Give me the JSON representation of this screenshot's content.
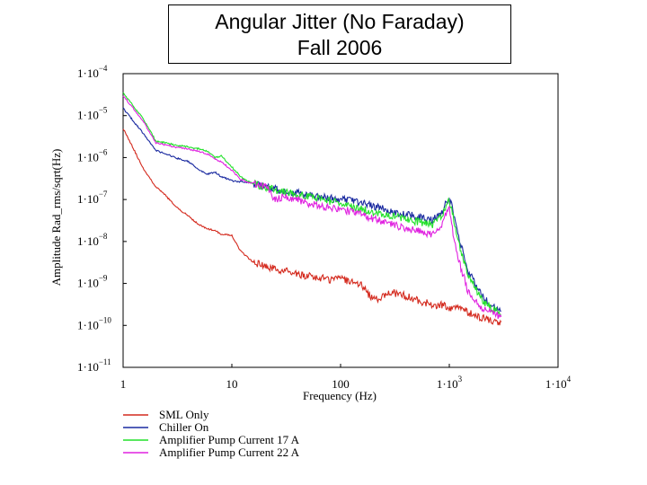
{
  "slide": {
    "title_line1": "Angular Jitter (No Faraday)",
    "title_line2": "Fall 2006"
  },
  "chart_data": {
    "type": "line",
    "xlabel": "Frequency (Hz)",
    "ylabel": "Amplitude Rad_rms/sqrt(Hz)",
    "x_scale": "log",
    "y_scale": "log",
    "xlim": [
      1,
      10000
    ],
    "ylim": [
      1e-11,
      0.0001
    ],
    "x_ticks": [
      {
        "value": 1,
        "mant": "1",
        "exp": ""
      },
      {
        "value": 10,
        "mant": "10",
        "exp": ""
      },
      {
        "value": 100,
        "mant": "100",
        "exp": ""
      },
      {
        "value": 1000,
        "mant": "1·10",
        "exp": "3"
      },
      {
        "value": 10000,
        "mant": "1·10",
        "exp": "4"
      }
    ],
    "y_ticks": [
      {
        "value": 0.0001,
        "mant": "1·10",
        "exp": "−4"
      },
      {
        "value": 1e-05,
        "mant": "1·10",
        "exp": "−5"
      },
      {
        "value": 1e-06,
        "mant": "1·10",
        "exp": "−6"
      },
      {
        "value": 1e-07,
        "mant": "1·10",
        "exp": "−7"
      },
      {
        "value": 1e-08,
        "mant": "1·10",
        "exp": "−8"
      },
      {
        "value": 1e-09,
        "mant": "1·10",
        "exp": "−9"
      },
      {
        "value": 1e-10,
        "mant": "1·10",
        "exp": "−10"
      },
      {
        "value": 1e-11,
        "mant": "1·10",
        "exp": "−11"
      }
    ],
    "legend": "bottom-left",
    "grid": false,
    "series": [
      {
        "name": "SML Only",
        "color": "#d42a1e",
        "x": [
          1,
          1.2,
          1.5,
          2,
          2.5,
          3,
          4,
          5,
          6,
          7,
          8,
          10,
          12,
          15,
          20,
          25,
          30,
          35,
          40,
          50,
          60,
          70,
          80,
          90,
          100,
          120,
          150,
          200,
          250,
          300,
          400,
          500,
          600,
          700,
          800,
          900,
          1000,
          1100,
          1200,
          1500,
          2000,
          2500,
          3000
        ],
        "y": [
          5e-06,
          2e-06,
          6e-07,
          2e-07,
          1.2e-07,
          7e-08,
          4e-08,
          2.5e-08,
          2e-08,
          1.8e-08,
          1.5e-08,
          1.4e-08,
          6e-09,
          3.5e-09,
          2.5e-09,
          2.2e-09,
          2e-09,
          1.8e-09,
          1.6e-09,
          1.5e-09,
          1.4e-09,
          1.3e-09,
          1.2e-09,
          1.5e-09,
          1.4e-09,
          1.1e-09,
          1e-09,
          4e-10,
          5e-10,
          6e-10,
          5e-10,
          4e-10,
          3.5e-10,
          3e-10,
          3e-10,
          3e-10,
          2.5e-10,
          2.8e-10,
          3e-10,
          2e-10,
          1.5e-10,
          1.3e-10,
          1.2e-10
        ]
      },
      {
        "name": "Chiller On",
        "color": "#1a2aa0",
        "x": [
          1,
          1.5,
          2,
          2.5,
          3,
          4,
          5,
          6,
          7,
          8,
          10,
          15,
          20,
          30,
          50,
          70,
          100,
          150,
          200,
          300,
          500,
          700,
          850,
          950,
          1000,
          1050,
          1100,
          1200,
          1500,
          2000,
          2500,
          3000
        ],
        "y": [
          1.5e-05,
          4e-06,
          1.5e-06,
          1.2e-06,
          1e-06,
          8e-07,
          5e-07,
          4e-07,
          4.5e-07,
          3.5e-07,
          2.8e-07,
          2.5e-07,
          2e-07,
          1.6e-07,
          1.3e-07,
          1.1e-07,
          1e-07,
          8.5e-08,
          7e-08,
          5e-08,
          4e-08,
          3.2e-08,
          5e-08,
          9e-08,
          1e-07,
          7e-08,
          4e-08,
          1.5e-08,
          2e-09,
          5e-10,
          3e-10,
          2.2e-10
        ]
      },
      {
        "name": "Amplifier Pump Current 17 A",
        "color": "#22e02a",
        "x": [
          1,
          1.5,
          2,
          2.5,
          3,
          4,
          5,
          6,
          7,
          8,
          10,
          12,
          15,
          20,
          30,
          50,
          70,
          100,
          150,
          200,
          300,
          500,
          700,
          850,
          950,
          1000,
          1050,
          1100,
          1200,
          1500,
          2000,
          2500,
          3000
        ],
        "y": [
          3.5e-05,
          9e-06,
          2.5e-06,
          2.2e-06,
          2e-06,
          1.8e-06,
          1.6e-06,
          1.4e-06,
          1e-06,
          1.1e-06,
          6e-07,
          3.5e-07,
          2.5e-07,
          2e-07,
          1.5e-07,
          1.2e-07,
          1e-07,
          8e-08,
          6e-08,
          5e-08,
          4e-08,
          3e-08,
          2.5e-08,
          4e-08,
          8e-08,
          9e-08,
          6e-08,
          3e-08,
          1e-08,
          1.5e-09,
          4e-10,
          2.5e-10,
          1.8e-10
        ]
      },
      {
        "name": "Amplifier Pump Current 22 A",
        "color": "#e022e0",
        "x": [
          1,
          1.5,
          2,
          2.5,
          3,
          4,
          5,
          6,
          7,
          8,
          10,
          12,
          15,
          20,
          25,
          30,
          40,
          50,
          70,
          100,
          150,
          200,
          300,
          500,
          700,
          850,
          950,
          1000,
          1050,
          1100,
          1200,
          1500,
          2000,
          2500,
          3000
        ],
        "y": [
          3e-05,
          8e-06,
          2.2e-06,
          2e-06,
          1.8e-06,
          1.6e-06,
          1.4e-06,
          1.2e-06,
          9e-07,
          8e-07,
          5e-07,
          3e-07,
          2.5e-07,
          2.2e-07,
          1e-07,
          1.2e-07,
          1e-07,
          8e-08,
          7e-08,
          6e-08,
          4.5e-08,
          3.5e-08,
          2.5e-08,
          1.8e-08,
          1.5e-08,
          2.5e-08,
          5e-08,
          6e-08,
          3e-08,
          1.2e-08,
          4e-09,
          6e-10,
          2.5e-10,
          2e-10,
          1.6e-10
        ]
      }
    ]
  }
}
